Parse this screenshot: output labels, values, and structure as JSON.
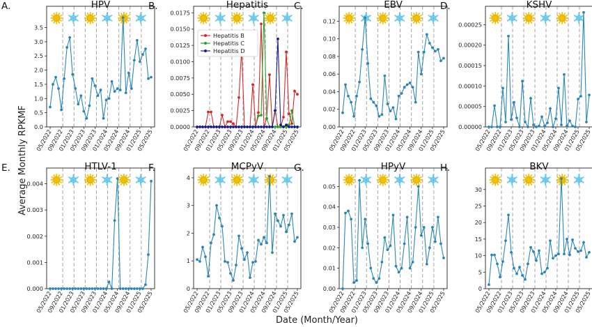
{
  "figure": {
    "ylabel": "Average Monthly RPKMF",
    "xlabel": "Date (Month/Year)"
  },
  "colors": {
    "line": "#2a86b8",
    "sun": "#f2c000",
    "snow": "#62c7ee",
    "hepatitis_b": "#d62728",
    "hepatitis_c": "#2ca02c",
    "hepatitis_d": "#1a1a8c",
    "season_line": "#9a9a9a"
  },
  "icons": [
    "sun-icon",
    "snowflake-icon",
    "sun-icon",
    "snowflake-icon",
    "sun-icon",
    "snowflake-icon"
  ],
  "x_ticks": [
    "05/2022",
    "09/2022",
    "01/2023",
    "05/2023",
    "09/2023",
    "01/2024",
    "05/2024",
    "09/2024",
    "01/2025",
    "05/2025"
  ],
  "chart_data": [
    {
      "type": "line",
      "letter": "A.",
      "title": "HPV",
      "ylim": [
        0,
        4.25
      ],
      "yticks": [
        "0.0",
        "0.5",
        "1.0",
        "1.5",
        "2.0",
        "2.5",
        "3.0",
        "3.5"
      ],
      "ytick_values": [
        0,
        0.5,
        1.0,
        1.5,
        2.0,
        2.5,
        3.0,
        3.5
      ],
      "x": [
        "05/2022",
        "06/2022",
        "07/2022",
        "08/2022",
        "09/2022",
        "10/2022",
        "11/2022",
        "12/2022",
        "01/2023",
        "02/2023",
        "03/2023",
        "04/2023",
        "05/2023",
        "06/2023",
        "07/2023",
        "08/2023",
        "09/2023",
        "10/2023",
        "11/2023",
        "12/2023",
        "01/2024",
        "02/2024",
        "03/2024",
        "04/2024",
        "05/2024",
        "06/2024",
        "07/2024",
        "08/2024",
        "09/2024",
        "10/2024",
        "11/2024",
        "12/2024",
        "01/2025",
        "02/2025",
        "03/2025",
        "04/2025",
        "05/2025"
      ],
      "series": [
        {
          "name": "",
          "values": [
            0.7,
            1.5,
            1.75,
            1.35,
            0.6,
            1.7,
            2.8,
            3.15,
            1.85,
            1.35,
            0.8,
            1.1,
            0.55,
            0.3,
            0.75,
            1.7,
            1.45,
            1.1,
            1.3,
            0.3,
            0.95,
            1.0,
            1.6,
            1.25,
            1.35,
            1.3,
            3.85,
            1.2,
            1.9,
            1.35,
            2.35,
            3.05,
            2.3,
            2.55,
            2.75,
            1.7,
            1.75
          ]
        }
      ]
    },
    {
      "type": "line",
      "letter": "B.",
      "title": "Hepatitis",
      "ylim": [
        0,
        0.0185
      ],
      "yticks": [
        "0.0000",
        "0.0025",
        "0.0050",
        "0.0075",
        "0.0100",
        "0.0125",
        "0.0150",
        "0.0175"
      ],
      "ytick_values": [
        0,
        0.0025,
        0.005,
        0.0075,
        0.01,
        0.0125,
        0.015,
        0.0175
      ],
      "legend": "upper left",
      "x": [
        "05/2022",
        "06/2022",
        "07/2022",
        "08/2022",
        "09/2022",
        "10/2022",
        "11/2022",
        "12/2022",
        "01/2023",
        "02/2023",
        "03/2023",
        "04/2023",
        "05/2023",
        "06/2023",
        "07/2023",
        "08/2023",
        "09/2023",
        "10/2023",
        "11/2023",
        "12/2023",
        "01/2024",
        "02/2024",
        "03/2024",
        "04/2024",
        "05/2024",
        "06/2024",
        "07/2024",
        "08/2024",
        "09/2024",
        "10/2024",
        "11/2024",
        "12/2024",
        "01/2025",
        "02/2025",
        "03/2025",
        "04/2025",
        "05/2025"
      ],
      "series": [
        {
          "name": "Hepatitis B",
          "values": [
            0,
            0,
            0,
            0,
            0.0023,
            0.0023,
            0,
            0,
            0,
            0.0018,
            0,
            0.0008,
            0.0008,
            0.0005,
            0,
            0.0045,
            0.012,
            0,
            0,
            0,
            0.0065,
            0,
            0.0022,
            0.0158,
            0,
            0.0013,
            0.008,
            0,
            0.0025,
            0,
            0,
            0.0015,
            0.0115,
            0.002,
            0.0005,
            0.0055,
            0.005
          ]
        },
        {
          "name": "Hepatitis C",
          "values": [
            0,
            0,
            0,
            0,
            0,
            0,
            0,
            0,
            0,
            0,
            0,
            0,
            0,
            0,
            0,
            0,
            0,
            0,
            0,
            0,
            0,
            0,
            0.0017,
            0.0018,
            0.0175,
            0.0013,
            0,
            0,
            0,
            0,
            0,
            0,
            0,
            0.0003,
            0.0025,
            0,
            0
          ]
        },
        {
          "name": "Hepatitis D",
          "values": [
            0,
            0,
            0,
            0,
            0,
            0,
            0,
            0,
            0,
            0,
            0,
            0,
            0,
            0,
            0,
            0,
            0,
            0,
            0,
            0,
            0,
            0,
            0,
            0,
            0,
            0,
            0,
            0,
            0.0025,
            0.0135,
            0.0003,
            0,
            0.0003,
            0,
            0,
            0,
            0
          ]
        }
      ]
    },
    {
      "type": "line",
      "letter": "C.",
      "title": "EBV",
      "ylim": [
        0,
        0.137
      ],
      "yticks": [
        "0.00",
        "0.02",
        "0.04",
        "0.06",
        "0.08",
        "0.10",
        "0.12"
      ],
      "ytick_values": [
        0,
        0.02,
        0.04,
        0.06,
        0.08,
        0.1,
        0.12
      ],
      "x": [
        "05/2022",
        "06/2022",
        "07/2022",
        "08/2022",
        "09/2022",
        "10/2022",
        "11/2022",
        "12/2022",
        "01/2023",
        "02/2023",
        "03/2023",
        "04/2023",
        "05/2023",
        "06/2023",
        "07/2023",
        "08/2023",
        "09/2023",
        "10/2023",
        "11/2023",
        "12/2023",
        "01/2024",
        "02/2024",
        "03/2024",
        "04/2024",
        "05/2024",
        "06/2024",
        "07/2024",
        "08/2024",
        "09/2024",
        "10/2024",
        "11/2024",
        "12/2024",
        "01/2025",
        "02/2025",
        "03/2025",
        "04/2025",
        "05/2025"
      ],
      "series": [
        {
          "name": "",
          "values": [
            0.016,
            0.048,
            0.035,
            0.028,
            0.012,
            0.035,
            0.051,
            0.088,
            0.124,
            0.072,
            0.032,
            0.028,
            0.024,
            0.012,
            0.014,
            0.058,
            0.026,
            0.018,
            0.022,
            0.009,
            0.035,
            0.038,
            0.045,
            0.048,
            0.05,
            0.045,
            0.028,
            0.085,
            0.06,
            0.085,
            0.105,
            0.095,
            0.09,
            0.086,
            0.088,
            0.075,
            0.078
          ]
        }
      ]
    },
    {
      "type": "line",
      "letter": "D.",
      "title": "KSHV",
      "ylim": [
        0,
        0.000295
      ],
      "yticks": [
        "0.00000",
        "0.00005",
        "0.00010",
        "0.00015",
        "0.00020",
        "0.00025"
      ],
      "ytick_values": [
        0,
        5e-05,
        0.0001,
        0.00015,
        0.0002,
        0.00025
      ],
      "x": [
        "05/2022",
        "06/2022",
        "07/2022",
        "08/2022",
        "09/2022",
        "10/2022",
        "11/2022",
        "12/2022",
        "01/2023",
        "02/2023",
        "03/2023",
        "04/2023",
        "05/2023",
        "06/2023",
        "07/2023",
        "08/2023",
        "09/2023",
        "10/2023",
        "11/2023",
        "12/2023",
        "01/2024",
        "02/2024",
        "03/2024",
        "04/2024",
        "05/2024",
        "06/2024",
        "07/2024",
        "08/2024",
        "09/2024",
        "10/2024",
        "11/2024",
        "12/2024",
        "01/2025",
        "02/2025",
        "03/2025",
        "04/2025",
        "05/2025"
      ],
      "series": [
        {
          "name": "",
          "values": [
            0,
            0,
            5.2e-05,
            0,
            0,
            9.5e-05,
            1.2e-05,
            0.000222,
            1.8e-05,
            6e-05,
            2.2e-05,
            0,
            0.000112,
            1.2e-05,
            0,
            7e-05,
            5e-06,
            0,
            2e-06,
            2.5e-05,
            2e-06,
            1e-05,
            4.5e-05,
            0,
            2e-05,
            9.5e-05,
            5e-06,
            0.000128,
            2e-06,
            1.5e-05,
            2e-06,
            0,
            6.8e-05,
            7.5e-05,
            0.00028,
            1.2e-05,
            7.8e-05
          ]
        }
      ]
    },
    {
      "type": "line",
      "letter": "E.",
      "title": "HTLV-1",
      "ylim": [
        0,
        0.0046
      ],
      "yticks": [
        "0.000",
        "0.001",
        "0.002",
        "0.003",
        "0.004"
      ],
      "ytick_values": [
        0,
        0.001,
        0.002,
        0.003,
        0.004
      ],
      "x": [
        "05/2022",
        "06/2022",
        "07/2022",
        "08/2022",
        "09/2022",
        "10/2022",
        "11/2022",
        "12/2022",
        "01/2023",
        "02/2023",
        "03/2023",
        "04/2023",
        "05/2023",
        "06/2023",
        "07/2023",
        "08/2023",
        "09/2023",
        "10/2023",
        "11/2023",
        "12/2023",
        "01/2024",
        "02/2024",
        "03/2024",
        "04/2024",
        "05/2024",
        "06/2024",
        "07/2024",
        "08/2024",
        "09/2024",
        "10/2024",
        "11/2024",
        "12/2024",
        "01/2025",
        "02/2025",
        "03/2025",
        "04/2025",
        "05/2025"
      ],
      "series": [
        {
          "name": "",
          "values": [
            0,
            0,
            0,
            0,
            0,
            0,
            0,
            0,
            0,
            0,
            0,
            0,
            0,
            0,
            0,
            0,
            0,
            0,
            0,
            0,
            0,
            0.00026,
            0,
            0.0026,
            0.0042,
            0,
            0,
            0,
            0,
            0,
            0,
            0,
            0,
            0,
            0.00015,
            0.0013,
            0.0041
          ]
        }
      ]
    },
    {
      "type": "line",
      "letter": "F.",
      "title": "MCPyV",
      "ylim": [
        0,
        4.35
      ],
      "yticks": [
        "0",
        "1",
        "2",
        "3",
        "4"
      ],
      "ytick_values": [
        0,
        1,
        2,
        3,
        4
      ],
      "x": [
        "05/2022",
        "06/2022",
        "07/2022",
        "08/2022",
        "09/2022",
        "10/2022",
        "11/2022",
        "12/2022",
        "01/2023",
        "02/2023",
        "03/2023",
        "04/2023",
        "05/2023",
        "06/2023",
        "07/2023",
        "08/2023",
        "09/2023",
        "10/2023",
        "11/2023",
        "12/2023",
        "01/2024",
        "02/2024",
        "03/2024",
        "04/2024",
        "05/2024",
        "06/2024",
        "07/2024",
        "08/2024",
        "09/2024",
        "10/2024",
        "11/2024",
        "12/2024",
        "01/2025",
        "02/2025",
        "03/2025",
        "04/2025",
        "05/2025"
      ],
      "series": [
        {
          "name": "",
          "values": [
            1.05,
            0.98,
            1.5,
            1.15,
            0.45,
            1.65,
            1.95,
            3.0,
            2.55,
            2.25,
            0.98,
            0.95,
            0.55,
            0.3,
            0.85,
            1.9,
            1.45,
            1.05,
            1.3,
            0.4,
            0.95,
            0.98,
            1.75,
            1.6,
            1.85,
            1.65,
            4.05,
            1.3,
            2.7,
            2.45,
            2.25,
            2.65,
            2.05,
            2.3,
            2.7,
            1.7,
            1.85
          ]
        }
      ]
    },
    {
      "type": "line",
      "letter": "G.",
      "title": "HPyV",
      "ylim": [
        0,
        0.059
      ],
      "yticks": [
        "0.00",
        "0.01",
        "0.02",
        "0.03",
        "0.04",
        "0.05"
      ],
      "ytick_values": [
        0,
        0.01,
        0.02,
        0.03,
        0.04,
        0.05
      ],
      "x": [
        "05/2022",
        "06/2022",
        "07/2022",
        "08/2022",
        "09/2022",
        "10/2022",
        "11/2022",
        "12/2022",
        "01/2023",
        "02/2023",
        "03/2023",
        "04/2023",
        "05/2023",
        "06/2023",
        "07/2023",
        "08/2023",
        "09/2023",
        "10/2023",
        "11/2023",
        "12/2023",
        "01/2024",
        "02/2024",
        "03/2024",
        "04/2024",
        "05/2024",
        "06/2024",
        "07/2024",
        "08/2024",
        "09/2024",
        "10/2024",
        "11/2024",
        "12/2024",
        "01/2025",
        "02/2025",
        "03/2025",
        "04/2025",
        "05/2025"
      ],
      "series": [
        {
          "name": "",
          "values": [
            0,
            0.037,
            0.038,
            0.034,
            0.003,
            0.004,
            0.053,
            0.02,
            0.034,
            0.022,
            0.01,
            0.005,
            0.003,
            0.005,
            0.013,
            0.025,
            0.019,
            0.021,
            0.036,
            0.011,
            0.008,
            0.01,
            0.022,
            0.035,
            0.01,
            0.013,
            0.03,
            0.05,
            0.026,
            0.03,
            0.012,
            0.02,
            0.03,
            0.023,
            0.035,
            0.022,
            0.015
          ]
        }
      ]
    },
    {
      "type": "line",
      "letter": "H.",
      "title": "BKV",
      "ylim": [
        0,
        36.5
      ],
      "yticks": [
        "0",
        "5",
        "10",
        "15",
        "20",
        "25",
        "30"
      ],
      "ytick_values": [
        0,
        5,
        10,
        15,
        20,
        25,
        30
      ],
      "x": [
        "05/2022",
        "06/2022",
        "07/2022",
        "08/2022",
        "09/2022",
        "10/2022",
        "11/2022",
        "12/2022",
        "01/2023",
        "02/2023",
        "03/2023",
        "04/2023",
        "05/2023",
        "06/2023",
        "07/2023",
        "08/2023",
        "09/2023",
        "10/2023",
        "11/2023",
        "12/2023",
        "01/2024",
        "02/2024",
        "03/2024",
        "04/2024",
        "05/2024",
        "06/2024",
        "07/2024",
        "08/2024",
        "09/2024",
        "10/2024",
        "11/2024",
        "12/2024",
        "01/2025",
        "02/2025",
        "03/2025",
        "04/2025",
        "05/2025"
      ],
      "series": [
        {
          "name": "",
          "values": [
            1.2,
            10.2,
            10.2,
            7.5,
            3.5,
            8.2,
            14.5,
            22.3,
            11,
            6.2,
            4.5,
            6.5,
            4,
            2.8,
            7.5,
            12.5,
            11.2,
            8.5,
            11.5,
            4.5,
            5,
            6.2,
            14.5,
            9.2,
            10,
            10.5,
            33.3,
            10.5,
            15,
            10.2,
            14.8,
            12.2,
            11.2,
            11.5,
            14,
            9.5,
            11
          ]
        }
      ]
    }
  ]
}
